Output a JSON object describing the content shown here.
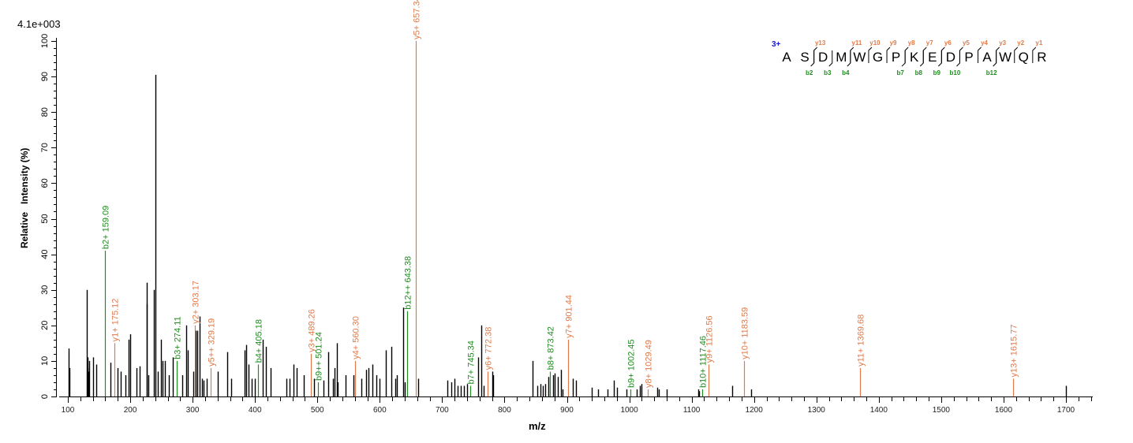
{
  "chart_data": {
    "type": "bar",
    "title": "",
    "scale_label": "4.1e+003",
    "xlabel": "m/z",
    "ylabel": "Relative   Intensity (%)",
    "xlim": [
      88,
      1740
    ],
    "ylim": [
      0,
      100
    ],
    "x_ticks": [
      100,
      200,
      300,
      400,
      500,
      600,
      700,
      800,
      900,
      1000,
      1100,
      1200,
      1300,
      1400,
      1500,
      1600,
      1700
    ],
    "y_ticks": [
      0,
      10,
      20,
      30,
      40,
      50,
      60,
      70,
      80,
      90,
      100
    ],
    "colors": {
      "b_ion": "#1e8c1e",
      "y_ion": "#e07a4a",
      "unassigned": "#000000",
      "charge": "#1a1acc"
    },
    "annotated_peaks": [
      {
        "label": "b2+ 159.09",
        "type": "b",
        "mz": 159.09,
        "intensity": 41
      },
      {
        "label": "y1+ 175.12",
        "type": "y",
        "mz": 175.12,
        "intensity": 15
      },
      {
        "label": "b3+ 274.11",
        "type": "b",
        "mz": 274.11,
        "intensity": 10
      },
      {
        "label": "y2+ 303.17",
        "type": "y",
        "mz": 303.17,
        "intensity": 20
      },
      {
        "label": "y5++ 329.19",
        "type": "y",
        "mz": 329.19,
        "intensity": 8
      },
      {
        "label": "b4+ 405.18",
        "type": "b",
        "mz": 405.18,
        "intensity": 9
      },
      {
        "label": "y3+ 489.26",
        "type": "y",
        "mz": 489.26,
        "intensity": 12
      },
      {
        "label": "b9++ 501.24",
        "type": "b",
        "mz": 501.24,
        "intensity": 4
      },
      {
        "label": "y4+ 560.30",
        "type": "y",
        "mz": 560.3,
        "intensity": 10
      },
      {
        "label": "b12++ 643.38",
        "type": "b",
        "mz": 643.38,
        "intensity": 24
      },
      {
        "label": "y5+ 657.34",
        "type": "y",
        "mz": 657.34,
        "intensity": 100
      },
      {
        "label": "b7+ 745.34",
        "type": "b",
        "mz": 745.34,
        "intensity": 3
      },
      {
        "label": "y6+ 772.38",
        "type": "y",
        "mz": 772.38,
        "intensity": 7
      },
      {
        "label": "b8+ 873.42",
        "type": "b",
        "mz": 873.42,
        "intensity": 7
      },
      {
        "label": "y7+ 901.44",
        "type": "y",
        "mz": 901.44,
        "intensity": 16
      },
      {
        "label": "b9+ 1002.45",
        "type": "b",
        "mz": 1002.45,
        "intensity": 2
      },
      {
        "label": "y8+ 1029.49",
        "type": "y",
        "mz": 1029.49,
        "intensity": 2
      },
      {
        "label": "b10+ 1117.46",
        "type": "b",
        "mz": 1117.46,
        "intensity": 2
      },
      {
        "label": "y9+ 1126.56",
        "type": "y",
        "mz": 1126.56,
        "intensity": 9
      },
      {
        "label": "y10+ 1183.59",
        "type": "y",
        "mz": 1183.59,
        "intensity": 10
      },
      {
        "label": "y11+ 1369.68",
        "type": "y",
        "mz": 1369.68,
        "intensity": 8
      },
      {
        "label": "y13+ 1615.77",
        "type": "y",
        "mz": 1615.77,
        "intensity": 5
      }
    ],
    "unassigned_peaks": [
      [
        101,
        13.5
      ],
      [
        102,
        8
      ],
      [
        130,
        30
      ],
      [
        131,
        8
      ],
      [
        132,
        11
      ],
      [
        133,
        7
      ],
      [
        134,
        10
      ],
      [
        140,
        11
      ],
      [
        145,
        9
      ],
      [
        168,
        9.5
      ],
      [
        180,
        8
      ],
      [
        185,
        7
      ],
      [
        192,
        6
      ],
      [
        198,
        16
      ],
      [
        200,
        17.5
      ],
      [
        210,
        8
      ],
      [
        215,
        8.5
      ],
      [
        226,
        32
      ],
      [
        227,
        26
      ],
      [
        229,
        6
      ],
      [
        238,
        30
      ],
      [
        241,
        90.5
      ],
      [
        244,
        7
      ],
      [
        249,
        16
      ],
      [
        252,
        10
      ],
      [
        255,
        10
      ],
      [
        262,
        6
      ],
      [
        268,
        11
      ],
      [
        283,
        6
      ],
      [
        290,
        20
      ],
      [
        292,
        13
      ],
      [
        301,
        7
      ],
      [
        305,
        18.5
      ],
      [
        308,
        18.5
      ],
      [
        311,
        22.5
      ],
      [
        315,
        5
      ],
      [
        318,
        4.5
      ],
      [
        323,
        5
      ],
      [
        340,
        7
      ],
      [
        355,
        12.5
      ],
      [
        362,
        5
      ],
      [
        383,
        13
      ],
      [
        386,
        14.5
      ],
      [
        390,
        9
      ],
      [
        395,
        5
      ],
      [
        400,
        5
      ],
      [
        412,
        16
      ],
      [
        418,
        14
      ],
      [
        425,
        8
      ],
      [
        450,
        5
      ],
      [
        455,
        5
      ],
      [
        462,
        9
      ],
      [
        467,
        8
      ],
      [
        478,
        6
      ],
      [
        495,
        5
      ],
      [
        510,
        4.5
      ],
      [
        518,
        12.5
      ],
      [
        525,
        5
      ],
      [
        528,
        8
      ],
      [
        531,
        15
      ],
      [
        533,
        4
      ],
      [
        545,
        6
      ],
      [
        558,
        6
      ],
      [
        570,
        5
      ],
      [
        578,
        7.5
      ],
      [
        582,
        8
      ],
      [
        588,
        9
      ],
      [
        595,
        6
      ],
      [
        600,
        5
      ],
      [
        610,
        13
      ],
      [
        618,
        14
      ],
      [
        625,
        5
      ],
      [
        628,
        6
      ],
      [
        637,
        25
      ],
      [
        640,
        4
      ],
      [
        662,
        5
      ],
      [
        708,
        4.5
      ],
      [
        715,
        4
      ],
      [
        720,
        5
      ],
      [
        725,
        3
      ],
      [
        730,
        3
      ],
      [
        735,
        3
      ],
      [
        740,
        3.5
      ],
      [
        758,
        11
      ],
      [
        763,
        20
      ],
      [
        767,
        3
      ],
      [
        780,
        7
      ],
      [
        782,
        6
      ],
      [
        845,
        10
      ],
      [
        852,
        3
      ],
      [
        857,
        3.5
      ],
      [
        862,
        3
      ],
      [
        865,
        3.5
      ],
      [
        870,
        5.5
      ],
      [
        878,
        6
      ],
      [
        880,
        6.5
      ],
      [
        885,
        5.5
      ],
      [
        890,
        7.5
      ],
      [
        893,
        2
      ],
      [
        910,
        5
      ],
      [
        915,
        4.5
      ],
      [
        940,
        2.5
      ],
      [
        950,
        2
      ],
      [
        965,
        2
      ],
      [
        975,
        4.5
      ],
      [
        980,
        2.5
      ],
      [
        995,
        2
      ],
      [
        1012,
        2
      ],
      [
        1017,
        3
      ],
      [
        1020,
        3.5
      ],
      [
        1045,
        2.5
      ],
      [
        1047,
        2
      ],
      [
        1060,
        2
      ],
      [
        1110,
        2
      ],
      [
        1112,
        1.5
      ],
      [
        1165,
        3
      ],
      [
        1195,
        2
      ],
      [
        1700,
        3
      ]
    ]
  },
  "peptide": {
    "charge": "3+",
    "residues": [
      "A",
      "S",
      "D",
      "M",
      "W",
      "G",
      "P",
      "K",
      "E",
      "D",
      "P",
      "A",
      "W",
      "Q",
      "R"
    ],
    "y_labels": [
      {
        "label": "y13",
        "after": 2
      },
      {
        "label": "y11",
        "after": 4
      },
      {
        "label": "y10",
        "after": 5
      },
      {
        "label": "y9",
        "after": 6
      },
      {
        "label": "y8",
        "after": 7
      },
      {
        "label": "y7",
        "after": 8
      },
      {
        "label": "y6",
        "after": 9
      },
      {
        "label": "y5",
        "after": 10
      },
      {
        "label": "y4",
        "after": 11
      },
      {
        "label": "y3",
        "after": 12
      },
      {
        "label": "y2",
        "after": 13
      },
      {
        "label": "y1",
        "after": 14
      }
    ],
    "b_labels": [
      {
        "label": "b2",
        "after": 2
      },
      {
        "label": "b3",
        "after": 3
      },
      {
        "label": "b4",
        "after": 4
      },
      {
        "label": "b7",
        "after": 7
      },
      {
        "label": "b8",
        "after": 8
      },
      {
        "label": "b9",
        "after": 9
      },
      {
        "label": "b10",
        "after": 10
      },
      {
        "label": "b12",
        "after": 12
      }
    ]
  }
}
